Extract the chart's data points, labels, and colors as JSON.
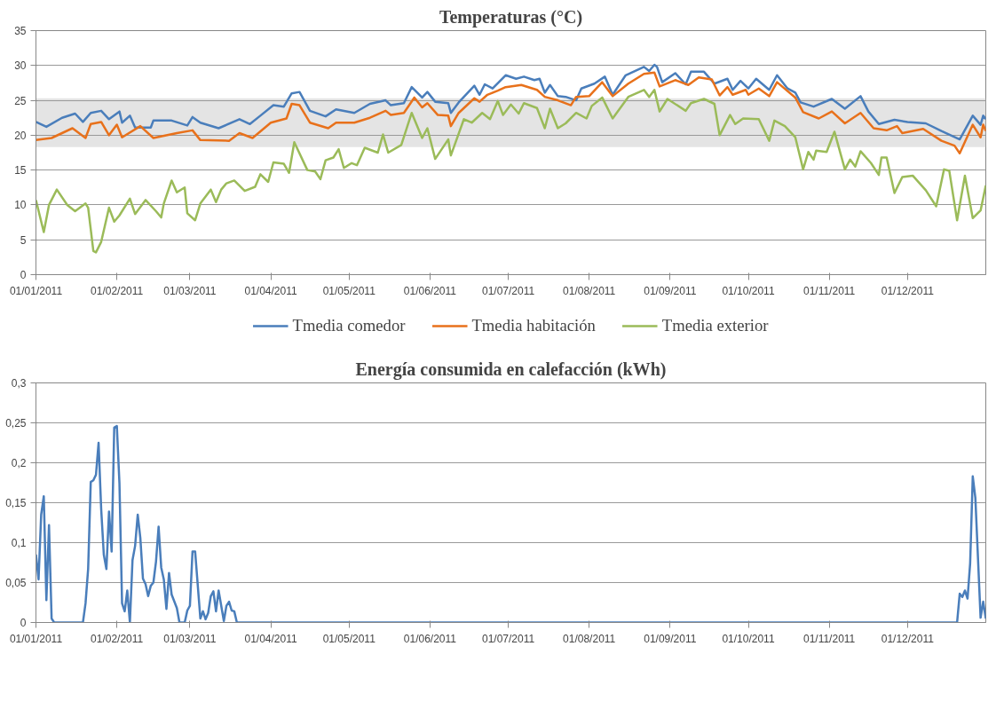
{
  "chart_data": [
    {
      "type": "line",
      "title": "Temperaturas (°C)",
      "xlim": [
        "2011-01-01",
        "2011-12-31"
      ],
      "xticks": [
        {
          "value": "2011-01-01",
          "label": "01/01/2011"
        },
        {
          "value": "2011-02-01",
          "label": "01/02/2011"
        },
        {
          "value": "2011-03-01",
          "label": "01/03/2011"
        },
        {
          "value": "2011-04-01",
          "label": "01/04/2011"
        },
        {
          "value": "2011-05-01",
          "label": "01/05/2011"
        },
        {
          "value": "2011-06-01",
          "label": "01/06/2011"
        },
        {
          "value": "2011-07-01",
          "label": "01/07/2011"
        },
        {
          "value": "2011-08-01",
          "label": "01/08/2011"
        },
        {
          "value": "2011-09-01",
          "label": "01/09/2011"
        },
        {
          "value": "2011-10-01",
          "label": "01/10/2011"
        },
        {
          "value": "2011-11-01",
          "label": "01/11/2011"
        },
        {
          "value": "2011-12-01",
          "label": "01/12/2011"
        }
      ],
      "ylim": [
        0,
        35
      ],
      "yticks": [
        0,
        5,
        10,
        15,
        20,
        25,
        30,
        35
      ],
      "grid": "y",
      "legend": "bottom",
      "marker": "none",
      "line_style": "solid",
      "bands": [
        {
          "axis": "y",
          "from": 18.3,
          "to": 25.3,
          "color": "#d9d9d9"
        }
      ],
      "series": [
        {
          "name": "Tmedia comedor",
          "color": "#4a7ebb",
          "x": [
            "2011-01-01",
            "2011-01-05",
            "2011-01-11",
            "2011-01-16",
            "2011-01-19",
            "2011-01-22",
            "2011-01-26",
            "2011-01-29",
            "2011-02-02",
            "2011-02-03",
            "2011-02-06",
            "2011-02-08",
            "2011-02-14",
            "2011-02-15",
            "2011-02-22",
            "2011-02-28",
            "2011-03-02",
            "2011-03-05",
            "2011-03-12",
            "2011-03-20",
            "2011-03-24",
            "2011-03-28",
            "2011-04-02",
            "2011-04-06",
            "2011-04-09",
            "2011-04-12",
            "2011-04-16",
            "2011-04-22",
            "2011-04-26",
            "2011-05-03",
            "2011-05-09",
            "2011-05-15",
            "2011-05-17",
            "2011-05-22",
            "2011-05-25",
            "2011-05-29",
            "2011-05-31",
            "2011-06-03",
            "2011-06-08",
            "2011-06-09",
            "2011-06-12",
            "2011-06-18",
            "2011-06-20",
            "2011-06-22",
            "2011-06-25",
            "2011-06-30",
            "2011-07-04",
            "2011-07-07",
            "2011-07-11",
            "2011-07-13",
            "2011-07-15",
            "2011-07-17",
            "2011-07-20",
            "2011-07-23",
            "2011-07-27",
            "2011-07-29",
            "2011-08-03",
            "2011-08-07",
            "2011-08-10",
            "2011-08-15",
            "2011-08-22",
            "2011-08-24",
            "2011-08-26",
            "2011-08-27",
            "2011-08-29",
            "2011-09-03",
            "2011-09-07",
            "2011-09-09",
            "2011-09-14",
            "2011-09-18",
            "2011-09-23",
            "2011-09-25",
            "2011-09-28",
            "2011-10-01",
            "2011-10-04",
            "2011-10-09",
            "2011-10-12",
            "2011-10-16",
            "2011-10-19",
            "2011-10-21",
            "2011-10-26",
            "2011-11-02",
            "2011-11-07",
            "2011-11-13",
            "2011-11-16",
            "2011-11-20",
            "2011-11-26",
            "2011-12-01",
            "2011-12-08",
            "2011-12-14",
            "2011-12-21",
            "2011-12-26",
            "2011-12-29",
            "2011-12-30",
            "2011-12-31"
          ],
          "values": [
            21.9,
            21.2,
            22.5,
            23.1,
            21.9,
            23.2,
            23.5,
            22.3,
            23.4,
            21.8,
            22.8,
            21.1,
            21.1,
            22.1,
            22.1,
            21.4,
            22.6,
            21.8,
            21.0,
            22.3,
            21.6,
            22.8,
            24.3,
            24.1,
            26.0,
            26.2,
            23.5,
            22.7,
            23.7,
            23.2,
            24.5,
            25.0,
            24.3,
            24.6,
            26.9,
            25.4,
            26.2,
            24.8,
            24.6,
            23.2,
            24.7,
            27.1,
            25.8,
            27.3,
            26.7,
            28.6,
            28.1,
            28.4,
            27.9,
            28.1,
            26.1,
            27.2,
            25.6,
            25.5,
            25.0,
            26.7,
            27.4,
            28.4,
            25.8,
            28.6,
            29.8,
            29.2,
            30.1,
            29.8,
            27.6,
            28.9,
            27.3,
            29.1,
            29.1,
            27.4,
            28.1,
            26.5,
            27.8,
            26.7,
            28.1,
            26.5,
            28.6,
            26.7,
            26.1,
            24.7,
            24.1,
            25.2,
            23.8,
            25.6,
            23.4,
            21.6,
            22.2,
            21.9,
            21.7,
            20.6,
            19.4,
            22.8,
            21.5,
            22.8,
            22.3
          ]
        },
        {
          "name": "Tmedia habitación",
          "color": "#e8711b",
          "x": [
            "2011-01-01",
            "2011-01-07",
            "2011-01-15",
            "2011-01-20",
            "2011-01-22",
            "2011-01-26",
            "2011-01-29",
            "2011-02-01",
            "2011-02-03",
            "2011-02-10",
            "2011-02-15",
            "2011-02-24",
            "2011-03-02",
            "2011-03-05",
            "2011-03-16",
            "2011-03-20",
            "2011-03-25",
            "2011-04-01",
            "2011-04-07",
            "2011-04-09",
            "2011-04-12",
            "2011-04-16",
            "2011-04-23",
            "2011-04-26",
            "2011-05-03",
            "2011-05-09",
            "2011-05-15",
            "2011-05-17",
            "2011-05-22",
            "2011-05-26",
            "2011-05-29",
            "2011-05-31",
            "2011-06-04",
            "2011-06-08",
            "2011-06-09",
            "2011-06-12",
            "2011-06-18",
            "2011-06-20",
            "2011-06-23",
            "2011-06-27",
            "2011-06-30",
            "2011-07-06",
            "2011-07-12",
            "2011-07-15",
            "2011-07-20",
            "2011-07-25",
            "2011-07-27",
            "2011-08-01",
            "2011-08-06",
            "2011-08-10",
            "2011-08-16",
            "2011-08-22",
            "2011-08-26",
            "2011-08-28",
            "2011-09-03",
            "2011-09-08",
            "2011-09-12",
            "2011-09-17",
            "2011-09-20",
            "2011-09-23",
            "2011-09-25",
            "2011-09-30",
            "2011-10-01",
            "2011-10-05",
            "2011-10-09",
            "2011-10-12",
            "2011-10-19",
            "2011-10-22",
            "2011-10-28",
            "2011-11-02",
            "2011-11-07",
            "2011-11-13",
            "2011-11-18",
            "2011-11-23",
            "2011-11-27",
            "2011-11-29",
            "2011-12-07",
            "2011-12-14",
            "2011-12-19",
            "2011-12-21",
            "2011-12-26",
            "2011-12-29",
            "2011-12-30",
            "2011-12-31"
          ],
          "values": [
            19.3,
            19.6,
            21.0,
            19.6,
            21.6,
            21.9,
            20.0,
            21.5,
            19.7,
            21.3,
            19.6,
            20.3,
            20.7,
            19.3,
            19.2,
            20.3,
            19.6,
            21.8,
            22.4,
            24.5,
            24.3,
            21.8,
            21.0,
            21.8,
            21.8,
            22.5,
            23.5,
            22.9,
            23.2,
            25.4,
            24.0,
            24.6,
            22.9,
            22.8,
            21.3,
            23.2,
            25.3,
            24.8,
            25.8,
            26.4,
            26.9,
            27.2,
            26.5,
            25.5,
            25.0,
            24.3,
            25.5,
            25.6,
            27.6,
            25.6,
            27.4,
            28.8,
            29.0,
            27.0,
            27.9,
            27.2,
            28.3,
            28.0,
            25.7,
            26.9,
            25.8,
            26.5,
            25.8,
            26.7,
            25.6,
            27.6,
            25.4,
            23.3,
            22.4,
            23.4,
            21.7,
            23.2,
            21.0,
            20.7,
            21.3,
            20.3,
            20.9,
            19.2,
            18.5,
            17.4,
            21.5,
            19.7,
            21.5,
            20.6
          ]
        },
        {
          "name": "Tmedia exterior",
          "color": "#9bbb59",
          "x": [
            "2011-01-01",
            "2011-01-04",
            "2011-01-06",
            "2011-01-09",
            "2011-01-13",
            "2011-01-16",
            "2011-01-20",
            "2011-01-21",
            "2011-01-23",
            "2011-01-24",
            "2011-01-26",
            "2011-01-29",
            "2011-01-31",
            "2011-02-02",
            "2011-02-06",
            "2011-02-08",
            "2011-02-12",
            "2011-02-16",
            "2011-02-18",
            "2011-02-19",
            "2011-02-22",
            "2011-02-24",
            "2011-02-27",
            "2011-02-28",
            "2011-03-03",
            "2011-03-05",
            "2011-03-09",
            "2011-03-11",
            "2011-03-13",
            "2011-03-15",
            "2011-03-18",
            "2011-03-22",
            "2011-03-26",
            "2011-03-28",
            "2011-03-31",
            "2011-04-02",
            "2011-04-06",
            "2011-04-08",
            "2011-04-10",
            "2011-04-15",
            "2011-04-18",
            "2011-04-20",
            "2011-04-22",
            "2011-04-25",
            "2011-04-27",
            "2011-04-29",
            "2011-05-02",
            "2011-05-04",
            "2011-05-07",
            "2011-05-12",
            "2011-05-14",
            "2011-05-16",
            "2011-05-21",
            "2011-05-25",
            "2011-05-29",
            "2011-05-31",
            "2011-06-03",
            "2011-06-08",
            "2011-06-09",
            "2011-06-14",
            "2011-06-17",
            "2011-06-21",
            "2011-06-24",
            "2011-06-27",
            "2011-06-29",
            "2011-07-02",
            "2011-07-05",
            "2011-07-07",
            "2011-07-12",
            "2011-07-15",
            "2011-07-17",
            "2011-07-20",
            "2011-07-23",
            "2011-07-27",
            "2011-07-31",
            "2011-08-02",
            "2011-08-06",
            "2011-08-10",
            "2011-08-16",
            "2011-08-22",
            "2011-08-24",
            "2011-08-26",
            "2011-08-28",
            "2011-08-31",
            "2011-09-07",
            "2011-09-09",
            "2011-09-14",
            "2011-09-18",
            "2011-09-20",
            "2011-09-24",
            "2011-09-26",
            "2011-09-29",
            "2011-10-05",
            "2011-10-09",
            "2011-10-11",
            "2011-10-15",
            "2011-10-19",
            "2011-10-22",
            "2011-10-24",
            "2011-10-26",
            "2011-10-27",
            "2011-10-31",
            "2011-11-03",
            "2011-11-07",
            "2011-11-09",
            "2011-11-11",
            "2011-11-13",
            "2011-11-17",
            "2011-11-20",
            "2011-11-21",
            "2011-11-23",
            "2011-11-26",
            "2011-11-29",
            "2011-12-03",
            "2011-12-08",
            "2011-12-12",
            "2011-12-15",
            "2011-12-17",
            "2011-12-20",
            "2011-12-23",
            "2011-12-26",
            "2011-12-29",
            "2011-12-31"
          ],
          "values": [
            10.7,
            6.1,
            10.0,
            12.2,
            10.0,
            9.1,
            10.2,
            9.6,
            3.4,
            3.2,
            4.7,
            9.6,
            7.6,
            8.5,
            10.9,
            8.7,
            10.7,
            9.1,
            8.2,
            10.2,
            13.5,
            11.8,
            12.5,
            8.8,
            7.8,
            10.2,
            12.2,
            10.4,
            12.2,
            13.1,
            13.5,
            12.0,
            12.6,
            14.4,
            13.3,
            16.1,
            15.9,
            14.6,
            19.0,
            15.0,
            14.8,
            13.7,
            16.4,
            16.8,
            18.0,
            15.3,
            16.0,
            15.7,
            18.2,
            17.5,
            20.1,
            17.5,
            18.6,
            23.2,
            19.6,
            21.0,
            16.6,
            19.4,
            17.1,
            22.3,
            21.8,
            23.2,
            22.3,
            24.9,
            22.9,
            24.4,
            23.1,
            24.6,
            23.9,
            21.0,
            23.8,
            21.0,
            21.7,
            23.2,
            22.4,
            24.2,
            25.4,
            22.4,
            25.5,
            26.5,
            25.5,
            26.5,
            23.4,
            25.2,
            23.5,
            24.6,
            25.2,
            24.5,
            20.0,
            22.9,
            21.6,
            22.4,
            22.3,
            19.2,
            22.1,
            21.3,
            19.7,
            15.1,
            17.6,
            16.5,
            17.8,
            17.6,
            20.5,
            15.1,
            16.5,
            15.5,
            17.7,
            16.0,
            14.3,
            16.8,
            16.8,
            11.7,
            14.0,
            14.2,
            12.1,
            9.8,
            15.1,
            14.9,
            7.8,
            14.2,
            8.1,
            9.2,
            12.8
          ]
        }
      ]
    },
    {
      "type": "line",
      "title": "Energía consumida en calefacción (kWh)",
      "xlim": [
        "2011-01-01",
        "2011-12-31"
      ],
      "xticks": [
        {
          "value": "2011-01-01",
          "label": "01/01/2011"
        },
        {
          "value": "2011-02-01",
          "label": "01/02/2011"
        },
        {
          "value": "2011-03-01",
          "label": "01/03/2011"
        },
        {
          "value": "2011-04-01",
          "label": "01/04/2011"
        },
        {
          "value": "2011-05-01",
          "label": "01/05/2011"
        },
        {
          "value": "2011-06-01",
          "label": "01/06/2011"
        },
        {
          "value": "2011-07-01",
          "label": "01/07/2011"
        },
        {
          "value": "2011-08-01",
          "label": "01/08/2011"
        },
        {
          "value": "2011-09-01",
          "label": "01/09/2011"
        },
        {
          "value": "2011-10-01",
          "label": "01/10/2011"
        },
        {
          "value": "2011-11-01",
          "label": "01/11/2011"
        },
        {
          "value": "2011-12-01",
          "label": "01/12/2011"
        }
      ],
      "ylim": [
        0,
        0.3
      ],
      "yticks": [
        0,
        {
          "value": 0.05,
          "label": "0,05"
        },
        {
          "value": 0.1,
          "label": "0,1"
        },
        {
          "value": 0.15,
          "label": "0,15"
        },
        {
          "value": 0.2,
          "label": "0,2"
        },
        {
          "value": 0.25,
          "label": "0,25"
        },
        {
          "value": 0.3,
          "label": "0,3"
        }
      ],
      "grid": "y",
      "marker": "none",
      "line_style": "solid",
      "series": [
        {
          "color": "#4a7ebb",
          "x": [
            "2011-01-01",
            "2011-01-02",
            "2011-01-03",
            "2011-01-04",
            "2011-01-05",
            "2011-01-06",
            "2011-01-07",
            "2011-01-08",
            "2011-01-13",
            "2011-01-19",
            "2011-01-20",
            "2011-01-21",
            "2011-01-22",
            "2011-01-23",
            "2011-01-24",
            "2011-01-25",
            "2011-01-26",
            "2011-01-27",
            "2011-01-28",
            "2011-01-29",
            "2011-01-30",
            "2011-01-31",
            "2011-02-01",
            "2011-02-02",
            "2011-02-03",
            "2011-02-04",
            "2011-02-05",
            "2011-02-06",
            "2011-02-07",
            "2011-02-08",
            "2011-02-09",
            "2011-02-10",
            "2011-02-11",
            "2011-02-12",
            "2011-02-13",
            "2011-02-14",
            "2011-02-15",
            "2011-02-16",
            "2011-02-17",
            "2011-02-18",
            "2011-02-19",
            "2011-02-20",
            "2011-02-21",
            "2011-02-22",
            "2011-02-24",
            "2011-02-25",
            "2011-02-27",
            "2011-02-28",
            "2011-03-01",
            "2011-03-02",
            "2011-03-03",
            "2011-03-05",
            "2011-03-06",
            "2011-03-07",
            "2011-03-08",
            "2011-03-09",
            "2011-03-10",
            "2011-03-11",
            "2011-03-12",
            "2011-03-14",
            "2011-03-15",
            "2011-03-16",
            "2011-03-17",
            "2011-03-18",
            "2011-03-19",
            "2011-05-01",
            "2011-07-01",
            "2011-09-01",
            "2011-11-01",
            "2011-12-20",
            "2011-12-21",
            "2011-12-22",
            "2011-12-23",
            "2011-12-24",
            "2011-12-25",
            "2011-12-26",
            "2011-12-27",
            "2011-12-29",
            "2011-12-30",
            "2011-12-31"
          ],
          "values": [
            0.085,
            0.054,
            0.135,
            0.158,
            0.028,
            0.122,
            0.005,
            0,
            0,
            0,
            0.024,
            0.067,
            0.176,
            0.178,
            0.185,
            0.225,
            0.142,
            0.085,
            0.067,
            0.139,
            0.089,
            0.244,
            0.246,
            0.174,
            0.024,
            0.014,
            0.04,
            0,
            0.078,
            0.096,
            0.135,
            0.106,
            0.055,
            0.048,
            0.033,
            0.046,
            0.05,
            0.076,
            0.12,
            0.069,
            0.054,
            0.017,
            0.062,
            0.035,
            0.018,
            0,
            0,
            0.015,
            0.021,
            0.089,
            0.089,
            0.005,
            0.014,
            0.004,
            0.012,
            0.033,
            0.039,
            0.014,
            0.04,
            0.002,
            0.021,
            0.026,
            0.015,
            0.014,
            0,
            0,
            0,
            0,
            0,
            0,
            0.036,
            0.032,
            0.04,
            0.03,
            0.074,
            0.183,
            0.156,
            0.006,
            0.026,
            0.005
          ]
        }
      ]
    }
  ]
}
